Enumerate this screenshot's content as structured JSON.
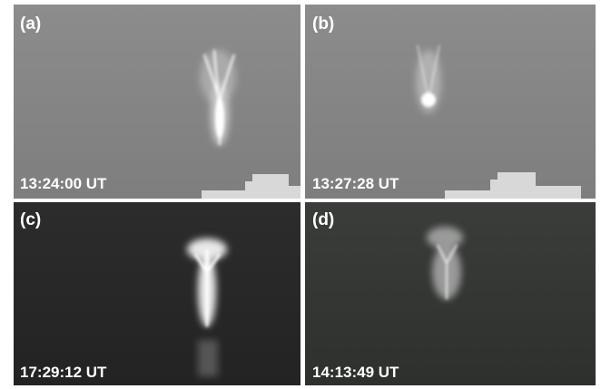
{
  "panels": [
    {
      "label": "(a)",
      "time": "13:24:00 UT"
    },
    {
      "label": "(b)",
      "time": "13:27:28 UT"
    },
    {
      "label": "(c)",
      "time": "17:29:12 UT"
    },
    {
      "label": "(d)",
      "time": "14:13:49 UT"
    }
  ]
}
